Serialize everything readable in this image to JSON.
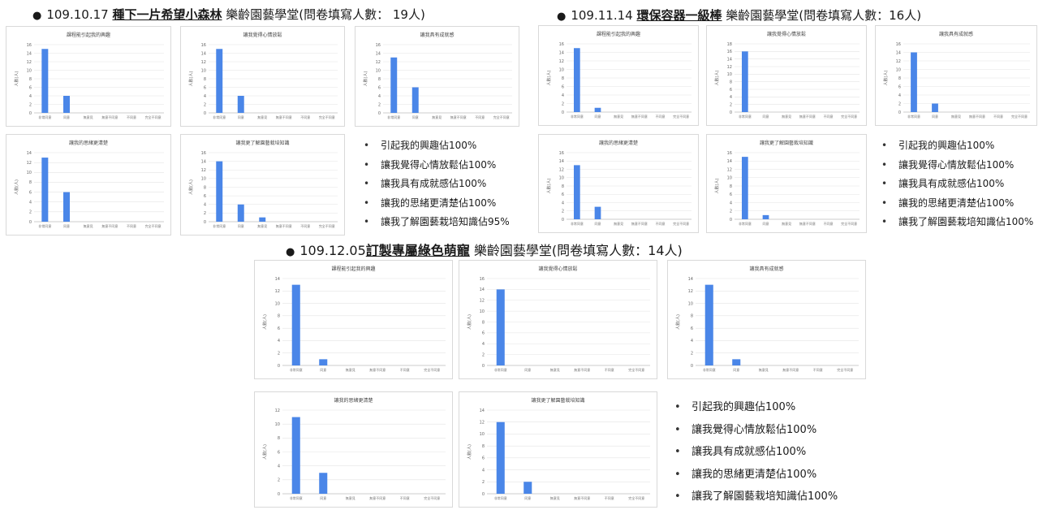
{
  "sections": [
    {
      "date": "109.10.17",
      "course": "種下一片希望小森林",
      "suffix": "樂齡園藝學堂(問卷填寫人數： 19人)",
      "bullets": [
        "引起我的興趣佔100%",
        "讓我覺得心情放鬆佔100%",
        "讓我具有成就感佔100%",
        "讓我的思緒更清楚佔100%",
        "讓我了解園藝栽培知識佔95%"
      ]
    },
    {
      "date": "109.11.14",
      "course": "環保容器一級棒",
      "suffix": "樂齡園藝學堂(問卷填寫人數：16人)",
      "bullets": [
        "引起我的興趣佔100%",
        "讓我覺得心情放鬆佔100%",
        "讓我具有成就感佔100%",
        "讓我的思緒更清楚佔100%",
        "讓我了解園藝栽培知識佔100%"
      ]
    },
    {
      "date": "109.12.05",
      "course": "訂製專屬綠色萌寵",
      "suffix": "樂齡園藝學堂(問卷填寫人數：14人)",
      "bullets": [
        "引起我的興趣佔100%",
        "讓我覺得心情放鬆佔100%",
        "讓我具有成就感佔100%",
        "讓我的思緒更清楚佔100%",
        "讓我了解園藝栽培知識佔100%"
      ]
    }
  ],
  "colors": {
    "bar": "#4a86e8",
    "grid": "#e3e3e3",
    "axis": "#bfbfbf"
  },
  "chart_data": [
    {
      "type": "bar",
      "title": "課程能引起我的興趣",
      "ylabel": "人數(人)",
      "categories": [
        "非常同意",
        "同意",
        "無意見",
        "無意不同意",
        "不同意",
        "完全不同意"
      ],
      "values": [
        15,
        4,
        0,
        0,
        0,
        0
      ],
      "ylim": [
        0,
        16
      ],
      "yticks": [
        0,
        2,
        4,
        6,
        8,
        10,
        12,
        14,
        16
      ]
    },
    {
      "type": "bar",
      "title": "讓我覺得心情放鬆",
      "ylabel": "人數(人)",
      "categories": [
        "非常同意",
        "同意",
        "無意見",
        "無意不同意",
        "不同意",
        "完全不同意"
      ],
      "values": [
        15,
        4,
        0,
        0,
        0,
        0
      ],
      "ylim": [
        0,
        16
      ],
      "yticks": [
        0,
        2,
        4,
        6,
        8,
        10,
        12,
        14,
        16
      ]
    },
    {
      "type": "bar",
      "title": "讓我具有成就感",
      "ylabel": "人數(人)",
      "categories": [
        "非常同意",
        "同意",
        "無意見",
        "無意不同意",
        "不同意",
        "完全不同意"
      ],
      "values": [
        13,
        6,
        0,
        0,
        0,
        0
      ],
      "ylim": [
        0,
        16
      ],
      "yticks": [
        0,
        2,
        4,
        6,
        8,
        10,
        12,
        14,
        16
      ]
    },
    {
      "type": "bar",
      "title": "讓我的思緒更清楚",
      "ylabel": "人數(人)",
      "categories": [
        "非常同意",
        "同意",
        "無意見",
        "無意不同意",
        "不同意",
        "完全不同意"
      ],
      "values": [
        13,
        6,
        0,
        0,
        0,
        0
      ],
      "ylim": [
        0,
        14
      ],
      "yticks": [
        0,
        2,
        4,
        6,
        8,
        10,
        12,
        14
      ]
    },
    {
      "type": "bar",
      "title": "讓我更了解園藝栽培知識",
      "ylabel": "人數(人)",
      "categories": [
        "非常同意",
        "同意",
        "無意見",
        "無意不同意",
        "不同意",
        "完全不同意"
      ],
      "values": [
        14,
        4,
        1,
        0,
        0,
        0
      ],
      "ylim": [
        0,
        16
      ],
      "yticks": [
        0,
        2,
        4,
        6,
        8,
        10,
        12,
        14,
        16
      ]
    },
    {
      "type": "bar",
      "title": "課程能引起我的興趣",
      "ylabel": "人數(人)",
      "categories": [
        "非常同意",
        "同意",
        "無意見",
        "無意不同意",
        "不同意",
        "完全不同意"
      ],
      "values": [
        15,
        1,
        0,
        0,
        0,
        0
      ],
      "ylim": [
        0,
        16
      ],
      "yticks": [
        0,
        2,
        4,
        6,
        8,
        10,
        12,
        14,
        16
      ]
    },
    {
      "type": "bar",
      "title": "讓我覺得心情放鬆",
      "ylabel": "人數(人)",
      "categories": [
        "非常同意",
        "同意",
        "無意見",
        "無意不同意",
        "不同意",
        "完全不同意"
      ],
      "values": [
        16,
        0,
        0,
        0,
        0,
        0
      ],
      "ylim": [
        0,
        18
      ],
      "yticks": [
        0,
        2,
        4,
        6,
        8,
        10,
        12,
        14,
        16,
        18
      ]
    },
    {
      "type": "bar",
      "title": "讓我具有成就感",
      "ylabel": "人數(人)",
      "categories": [
        "非常同意",
        "同意",
        "無意見",
        "無意不同意",
        "不同意",
        "完全不同意"
      ],
      "values": [
        14,
        2,
        0,
        0,
        0,
        0
      ],
      "ylim": [
        0,
        16
      ],
      "yticks": [
        0,
        2,
        4,
        6,
        8,
        10,
        12,
        14,
        16
      ]
    },
    {
      "type": "bar",
      "title": "讓我的思緒更清楚",
      "ylabel": "人數(人)",
      "categories": [
        "非常同意",
        "同意",
        "無意見",
        "無意不同意",
        "不同意",
        "完全不同意"
      ],
      "values": [
        13,
        3,
        0,
        0,
        0,
        0
      ],
      "ylim": [
        0,
        16
      ],
      "yticks": [
        0,
        2,
        4,
        6,
        8,
        10,
        12,
        14,
        16
      ]
    },
    {
      "type": "bar",
      "title": "讓我更了解園藝栽培知識",
      "ylabel": "人數(人)",
      "categories": [
        "非常同意",
        "同意",
        "無意見",
        "無意不同意",
        "不同意",
        "完全不同意"
      ],
      "values": [
        15,
        1,
        0,
        0,
        0,
        0
      ],
      "ylim": [
        0,
        16
      ],
      "yticks": [
        0,
        2,
        4,
        6,
        8,
        10,
        12,
        14,
        16
      ]
    },
    {
      "type": "bar",
      "title": "課程能引起我的興趣",
      "ylabel": "人數(人)",
      "categories": [
        "非常同意",
        "同意",
        "無意見",
        "無意不同意",
        "不同意",
        "完全不同意"
      ],
      "values": [
        13,
        1,
        0,
        0,
        0,
        0
      ],
      "ylim": [
        0,
        14
      ],
      "yticks": [
        0,
        2,
        4,
        6,
        8,
        10,
        12,
        14
      ]
    },
    {
      "type": "bar",
      "title": "讓我覺得心情放鬆",
      "ylabel": "人數(人)",
      "categories": [
        "非常同意",
        "同意",
        "無意見",
        "無意不同意",
        "不同意",
        "完全不同意"
      ],
      "values": [
        14,
        0,
        0,
        0,
        0,
        0
      ],
      "ylim": [
        0,
        16
      ],
      "yticks": [
        0,
        2,
        4,
        6,
        8,
        10,
        12,
        14,
        16
      ]
    },
    {
      "type": "bar",
      "title": "讓我具有成就感",
      "ylabel": "人數(人)",
      "categories": [
        "非常同意",
        "同意",
        "無意見",
        "無意不同意",
        "不同意",
        "完全不同意"
      ],
      "values": [
        13,
        1,
        0,
        0,
        0,
        0
      ],
      "ylim": [
        0,
        14
      ],
      "yticks": [
        0,
        2,
        4,
        6,
        8,
        10,
        12,
        14
      ]
    },
    {
      "type": "bar",
      "title": "讓我的思緒更清楚",
      "ylabel": "人數(人)",
      "categories": [
        "非常同意",
        "同意",
        "無意見",
        "無意不同意",
        "不同意",
        "完全不同意"
      ],
      "values": [
        11,
        3,
        0,
        0,
        0,
        0
      ],
      "ylim": [
        0,
        12
      ],
      "yticks": [
        0,
        2,
        4,
        6,
        8,
        10,
        12
      ]
    },
    {
      "type": "bar",
      "title": "讓我更了解園藝栽培知識",
      "ylabel": "人數(人)",
      "categories": [
        "非常同意",
        "同意",
        "無意見",
        "無意不同意",
        "不同意",
        "完全不同意"
      ],
      "values": [
        12,
        2,
        0,
        0,
        0,
        0
      ],
      "ylim": [
        0,
        14
      ],
      "yticks": [
        0,
        2,
        4,
        6,
        8,
        10,
        12,
        14
      ]
    }
  ]
}
